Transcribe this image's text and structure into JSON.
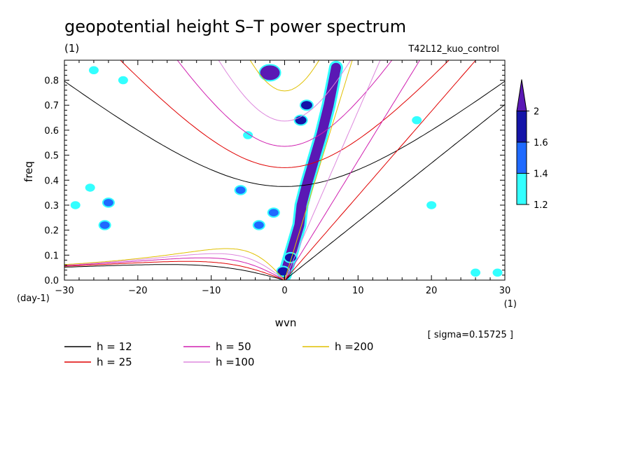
{
  "chart_data": {
    "type": "contour",
    "title": "geopotential height S–T power spectrum",
    "subtitle_left": "(1)",
    "subtitle_right": "T42L12_kuo_control",
    "xlabel": "wvn",
    "ylabel": "freq",
    "x_unit": "(1)",
    "y_unit": "(day-1)",
    "xlim": [
      -30,
      30
    ],
    "ylim": [
      0,
      0.88
    ],
    "x_ticks": [
      -30,
      -20,
      -10,
      0,
      10,
      20,
      30
    ],
    "y_ticks": [
      0.0,
      0.1,
      0.2,
      0.3,
      0.4,
      0.5,
      0.6,
      0.7,
      0.8
    ],
    "x_tick_labels": [
      "−30",
      "−20",
      "−10",
      "0",
      "10",
      "20",
      "30"
    ],
    "y_tick_labels": [
      "0.0",
      "0.1",
      "0.2",
      "0.3",
      "0.4",
      "0.5",
      "0.6",
      "0.7",
      "0.8"
    ],
    "sigma_note": "[ sigma=0.15725 ]",
    "colorbar": {
      "levels": [
        1.2,
        1.4,
        1.6,
        2
      ],
      "level_labels": [
        "1.2",
        "1.4",
        "1.6",
        "2"
      ],
      "colors": [
        "#33ffff",
        "#1f6aff",
        "#1414a8",
        "#5a18b4"
      ]
    },
    "dispersion_curves": [
      {
        "h": 12,
        "label": "h = 12",
        "color": "#000000"
      },
      {
        "h": 25,
        "label": "h = 25",
        "color": "#e00000"
      },
      {
        "h": 50,
        "label": "h = 50",
        "color": "#d020b0"
      },
      {
        "h": 100,
        "label": "h =100",
        "color": "#dd88dd"
      },
      {
        "h": 200,
        "label": "h =200",
        "color": "#e0c000"
      }
    ],
    "shaded_regions": [
      {
        "name": "kelvin-ridge",
        "x": [
          0,
          1,
          2,
          2.3,
          3,
          4,
          5,
          6,
          7
        ],
        "y": [
          0.02,
          0.12,
          0.22,
          0.3,
          0.38,
          0.48,
          0.58,
          0.7,
          0.85
        ],
        "level": 2
      },
      {
        "name": "top-blob",
        "x": [
          -2
        ],
        "y": [
          0.83
        ],
        "level": 2
      },
      {
        "name": "blob-1",
        "x": [
          2.2
        ],
        "y": [
          0.64
        ],
        "level": 1.6
      },
      {
        "name": "blob-2",
        "x": [
          3
        ],
        "y": [
          0.7
        ],
        "level": 1.6
      },
      {
        "name": "blob-3",
        "x": [
          0.8
        ],
        "y": [
          0.09
        ],
        "level": 1.6
      },
      {
        "name": "blob-4",
        "x": [
          -0.2
        ],
        "y": [
          0.035
        ],
        "level": 1.6
      },
      {
        "name": "blob-5",
        "x": [
          -1.5
        ],
        "y": [
          0.27
        ],
        "level": 1.4
      },
      {
        "name": "blob-6",
        "x": [
          -3.5
        ],
        "y": [
          0.22
        ],
        "level": 1.4
      },
      {
        "name": "blob-7",
        "x": [
          -6
        ],
        "y": [
          0.36
        ],
        "level": 1.4
      },
      {
        "name": "blob-8",
        "x": [
          -24.5
        ],
        "y": [
          0.22
        ],
        "level": 1.4
      },
      {
        "name": "blob-9",
        "x": [
          -26.5
        ],
        "y": [
          0.37
        ],
        "level": 1.2
      },
      {
        "name": "blob-10",
        "x": [
          -28.5
        ],
        "y": [
          0.3
        ],
        "level": 1.2
      },
      {
        "name": "blob-11",
        "x": [
          -26
        ],
        "y": [
          0.84
        ],
        "level": 1.2
      },
      {
        "name": "blob-12",
        "x": [
          -22
        ],
        "y": [
          0.8
        ],
        "level": 1.2
      },
      {
        "name": "blob-13",
        "x": [
          -24
        ],
        "y": [
          0.31
        ],
        "level": 1.4
      },
      {
        "name": "blob-14",
        "x": [
          -5
        ],
        "y": [
          0.58
        ],
        "level": 1.2
      },
      {
        "name": "blob-15",
        "x": [
          26
        ],
        "y": [
          0.03
        ],
        "level": 1.2
      },
      {
        "name": "blob-16",
        "x": [
          29
        ],
        "y": [
          0.03
        ],
        "level": 1.2
      },
      {
        "name": "blob-17",
        "x": [
          20
        ],
        "y": [
          0.3
        ],
        "level": 1.2
      },
      {
        "name": "blob-18",
        "x": [
          18
        ],
        "y": [
          0.64
        ],
        "level": 1.2
      }
    ]
  }
}
